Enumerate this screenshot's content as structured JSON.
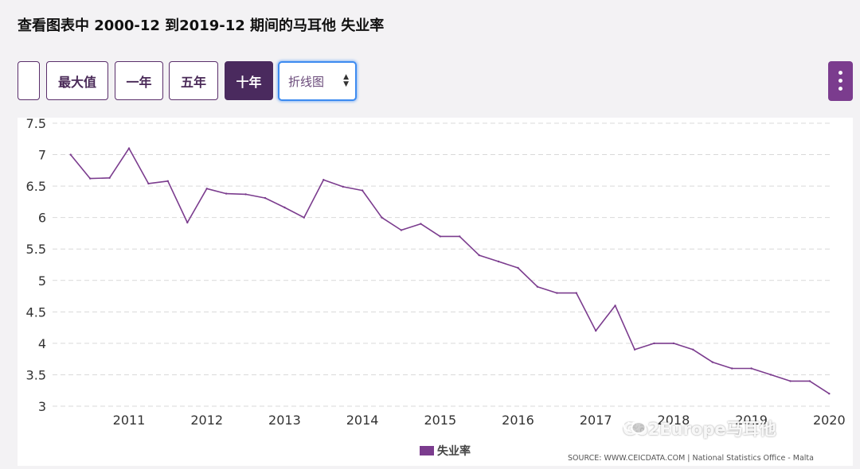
{
  "title": "查看图表中 2000-12 到2019-12 期间的马耳他 失业率",
  "toolbar": {
    "max_label": "最大值",
    "one_year_label": "一年",
    "five_year_label": "五年",
    "ten_year_label": "十年",
    "chart_type_value": "折线图",
    "active_range": "十年"
  },
  "colors": {
    "accent": "#7b3c8e",
    "active_button": "#4a2a5e",
    "line": "#7b3c8e"
  },
  "legend_label": "失业率",
  "source_text": "SOURCE: WWW.CEICDATA.COM | National Statistics Office - Malta",
  "watermark_text": "Go2Europe马耳他",
  "chart_data": {
    "type": "line",
    "title": "",
    "xlabel": "",
    "ylabel": "",
    "ylim": [
      3,
      7.5
    ],
    "yticks": [
      "7.5",
      "7",
      "6.5",
      "6",
      "5.5",
      "5",
      "4.5",
      "4",
      "3.5",
      "3"
    ],
    "xticks": [
      "2011",
      "2012",
      "2013",
      "2014",
      "2015",
      "2016",
      "2017",
      "2018",
      "2019",
      "2020"
    ],
    "grid": true,
    "legend": "bottom-center",
    "series": [
      {
        "name": "失业率",
        "x": [
          "2010-03",
          "2010-06",
          "2010-09",
          "2010-12",
          "2011-03",
          "2011-06",
          "2011-09",
          "2011-12",
          "2012-03",
          "2012-06",
          "2012-09",
          "2012-12",
          "2013-03",
          "2013-06",
          "2013-09",
          "2013-12",
          "2014-03",
          "2014-06",
          "2014-09",
          "2014-12",
          "2015-03",
          "2015-06",
          "2015-09",
          "2015-12",
          "2016-03",
          "2016-06",
          "2016-09",
          "2016-12",
          "2017-03",
          "2017-06",
          "2017-09",
          "2017-12",
          "2018-03",
          "2018-06",
          "2018-09",
          "2018-12",
          "2019-03",
          "2019-06",
          "2019-09",
          "2019-12"
        ],
        "values": [
          7.0,
          6.62,
          6.63,
          7.1,
          6.54,
          6.58,
          5.92,
          6.46,
          6.38,
          6.37,
          6.31,
          6.16,
          6.0,
          6.6,
          6.49,
          6.43,
          6.0,
          5.8,
          5.9,
          5.7,
          5.7,
          5.4,
          5.3,
          5.2,
          4.9,
          4.8,
          4.8,
          4.2,
          4.6,
          3.9,
          4.0,
          4.0,
          3.9,
          3.7,
          3.6,
          3.6,
          3.5,
          3.4,
          3.4,
          3.2
        ]
      }
    ]
  }
}
